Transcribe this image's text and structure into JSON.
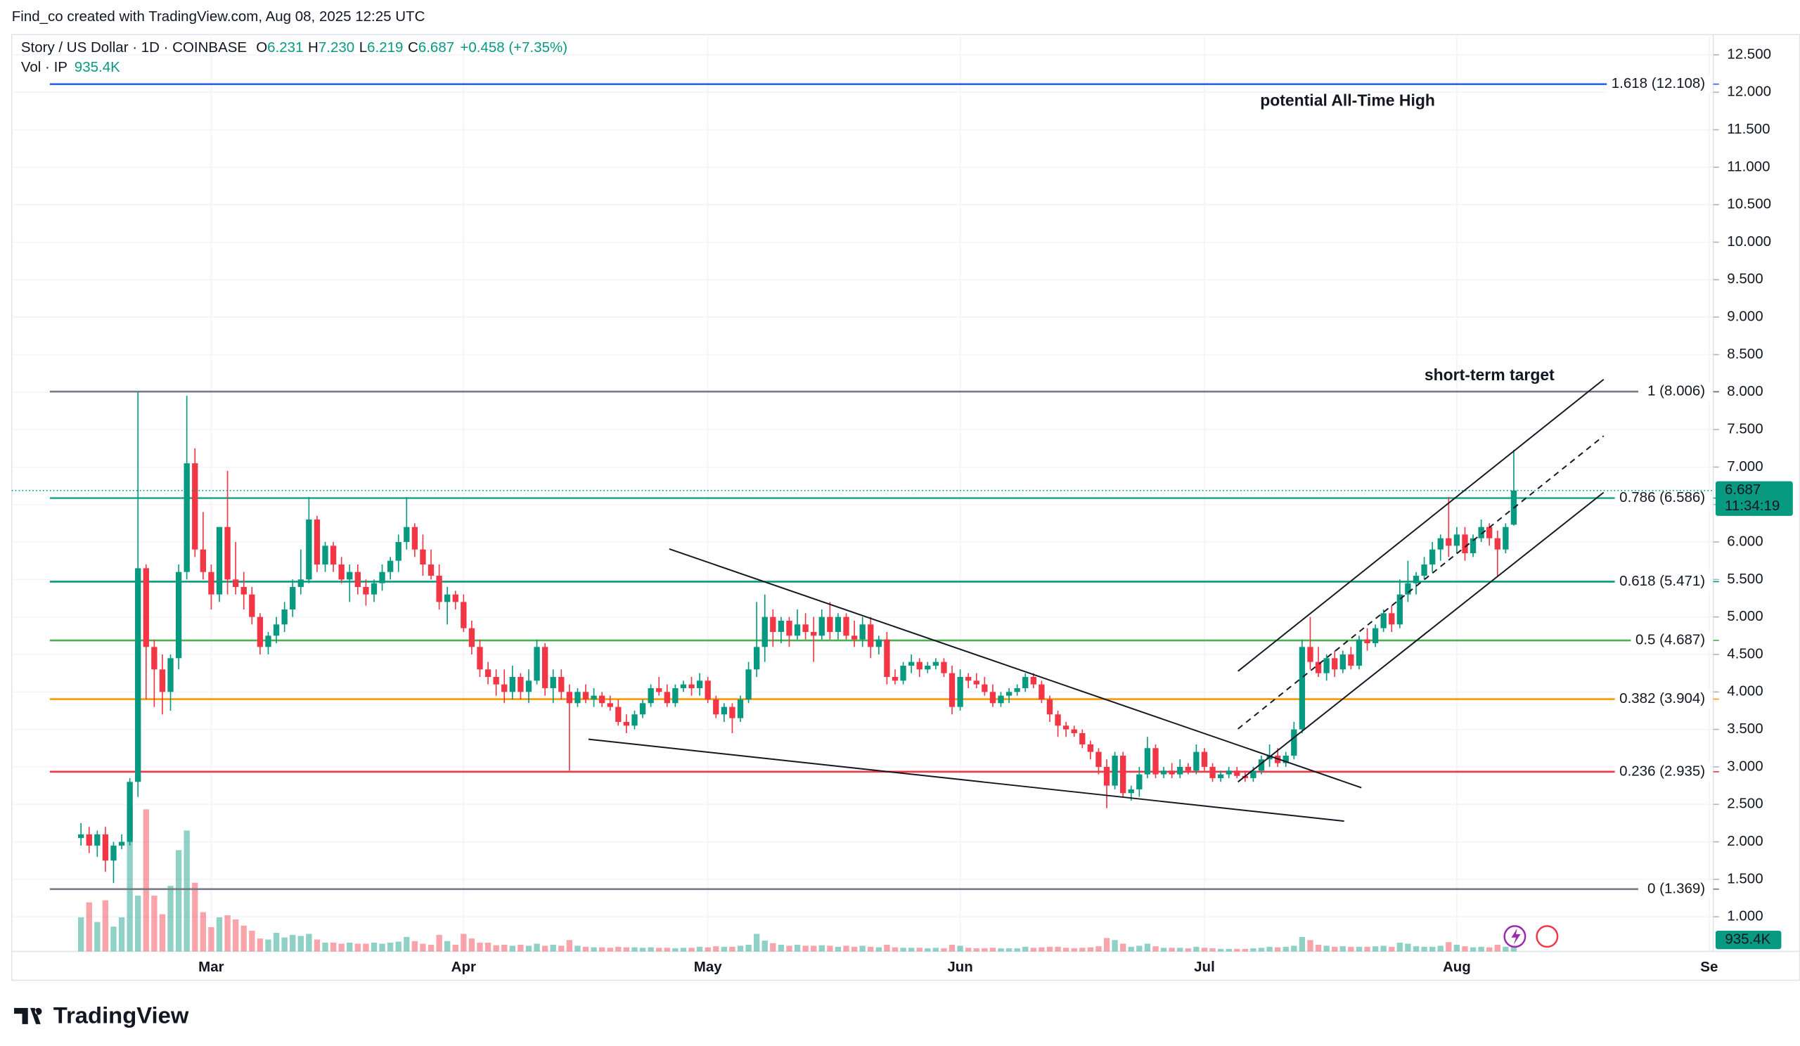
{
  "header": "Find_co created with TradingView.com, Aug 08, 2025 12:25 UTC",
  "footer": "TradingView",
  "chart_data": {
    "type": "candlestick",
    "legend": {
      "symbol": "Story / US Dollar · 1D · COINBASE",
      "fields": [
        {
          "key": "O",
          "value": "6.231"
        },
        {
          "key": "H",
          "value": "7.230"
        },
        {
          "key": "L",
          "value": "6.219"
        },
        {
          "key": "C",
          "value": "6.687"
        }
      ],
      "change": "+0.458 (+7.35%)",
      "volume_key": "Vol · IP",
      "volume": "935.4K"
    },
    "countdown": "11:34:19",
    "annotations": [
      "potential All-Time High",
      "short-term target"
    ],
    "up_color": "#089981",
    "down_color": "#f23645",
    "grid": true,
    "xlim": [
      -8.5,
      200.5
    ],
    "xticks": [
      {
        "value": 16,
        "label": "Mar"
      },
      {
        "value": 47,
        "label": "Apr"
      },
      {
        "value": 77,
        "label": "May"
      },
      {
        "value": 108,
        "label": "Jun"
      },
      {
        "value": 138,
        "label": "Jul"
      },
      {
        "value": 169,
        "label": "Aug"
      },
      {
        "value": 200,
        "label": "Se"
      }
    ],
    "ylim": [
      0.538,
      12.769
    ],
    "yticks": [
      {
        "value": 1,
        "label": "1.000"
      },
      {
        "value": 1.5,
        "label": "1.500"
      },
      {
        "value": 2,
        "label": "2.000"
      },
      {
        "value": 2.5,
        "label": "2.500"
      },
      {
        "value": 3,
        "label": "3.000"
      },
      {
        "value": 3.5,
        "label": "3.500"
      },
      {
        "value": 4,
        "label": "4.000"
      },
      {
        "value": 4.5,
        "label": "4.500"
      },
      {
        "value": 5,
        "label": "5.000"
      },
      {
        "value": 5.5,
        "label": "5.500"
      },
      {
        "value": 6,
        "label": "6.000"
      },
      {
        "value": 6.5,
        "label": "6.500"
      },
      {
        "value": 7,
        "label": "7.000"
      },
      {
        "value": 7.5,
        "label": "7.500"
      },
      {
        "value": 8,
        "label": "8.000"
      },
      {
        "value": 8.5,
        "label": "8.500"
      },
      {
        "value": 9,
        "label": "9.000"
      },
      {
        "value": 9.5,
        "label": "9.500"
      },
      {
        "value": 10,
        "label": "10.000"
      },
      {
        "value": 10.5,
        "label": "10.500"
      },
      {
        "value": 11,
        "label": "11.000"
      },
      {
        "value": 11.5,
        "label": "11.500"
      },
      {
        "value": 12,
        "label": "12.000"
      },
      {
        "value": 12.5,
        "label": "12.500"
      }
    ],
    "fib": [
      {
        "label": "1.618 (12.108)",
        "value": 12.108,
        "color": "#2962ff"
      },
      {
        "label": "1 (8.006)",
        "value": 8.006,
        "color": "#787b86"
      },
      {
        "label": "0.786 (6.586)",
        "value": 6.586,
        "color": "#22ab94"
      },
      {
        "label": "0.618 (5.471)",
        "value": 5.471,
        "color": "#089981"
      },
      {
        "label": "0.5 (4.687)",
        "value": 4.687,
        "color": "#4caf50"
      },
      {
        "label": "0.382 (3.904)",
        "value": 3.904,
        "color": "#ff9800"
      },
      {
        "label": "0.236 (2.935)",
        "value": 2.935,
        "color": "#f23645"
      },
      {
        "label": "0 (1.369)",
        "value": 1.369,
        "color": "#787b86"
      }
    ],
    "ohlc": [
      [
        2.05,
        2.25,
        1.95,
        2.1
      ],
      [
        2.1,
        2.2,
        1.85,
        1.95
      ],
      [
        1.95,
        2.15,
        1.8,
        2.1
      ],
      [
        2.1,
        2.2,
        1.6,
        1.75
      ],
      [
        1.75,
        2.0,
        1.45,
        1.95
      ],
      [
        1.95,
        2.1,
        1.9,
        2.0
      ],
      [
        2.0,
        2.85,
        1.95,
        2.8
      ],
      [
        2.8,
        8.0,
        2.6,
        5.65
      ],
      [
        5.65,
        5.7,
        3.9,
        4.6
      ],
      [
        4.6,
        4.7,
        3.8,
        4.3
      ],
      [
        4.3,
        4.5,
        3.7,
        4.0
      ],
      [
        4.0,
        4.5,
        3.75,
        4.45
      ],
      [
        4.45,
        5.7,
        4.3,
        5.6
      ],
      [
        5.6,
        7.95,
        5.5,
        7.05
      ],
      [
        7.05,
        7.25,
        5.8,
        5.9
      ],
      [
        5.9,
        6.4,
        5.5,
        5.6
      ],
      [
        5.6,
        5.7,
        5.1,
        5.3
      ],
      [
        5.3,
        6.2,
        5.2,
        6.2
      ],
      [
        6.2,
        6.95,
        5.3,
        5.5
      ],
      [
        5.5,
        6.0,
        5.3,
        5.4
      ],
      [
        5.4,
        5.6,
        5.1,
        5.3
      ],
      [
        5.3,
        5.4,
        4.9,
        5.0
      ],
      [
        5.0,
        5.05,
        4.5,
        4.6
      ],
      [
        4.6,
        4.8,
        4.5,
        4.75
      ],
      [
        4.75,
        5.0,
        4.65,
        4.9
      ],
      [
        4.9,
        5.2,
        4.8,
        5.1
      ],
      [
        5.1,
        5.5,
        5.0,
        5.4
      ],
      [
        5.4,
        5.9,
        5.3,
        5.5
      ],
      [
        5.5,
        6.6,
        5.45,
        6.3
      ],
      [
        6.3,
        6.35,
        5.6,
        5.7
      ],
      [
        5.7,
        6.0,
        5.6,
        5.95
      ],
      [
        5.95,
        6.0,
        5.6,
        5.7
      ],
      [
        5.7,
        5.8,
        5.45,
        5.5
      ],
      [
        5.5,
        5.7,
        5.2,
        5.6
      ],
      [
        5.6,
        5.7,
        5.3,
        5.4
      ],
      [
        5.4,
        5.5,
        5.15,
        5.3
      ],
      [
        5.3,
        5.5,
        5.2,
        5.45
      ],
      [
        5.45,
        5.7,
        5.35,
        5.6
      ],
      [
        5.6,
        5.8,
        5.5,
        5.75
      ],
      [
        5.75,
        6.1,
        5.6,
        6.0
      ],
      [
        6.0,
        6.6,
        5.9,
        6.2
      ],
      [
        6.2,
        6.25,
        5.8,
        5.9
      ],
      [
        5.9,
        6.1,
        5.55,
        5.7
      ],
      [
        5.7,
        5.9,
        5.5,
        5.55
      ],
      [
        5.55,
        5.7,
        5.1,
        5.2
      ],
      [
        5.2,
        5.4,
        4.9,
        5.3
      ],
      [
        5.3,
        5.35,
        5.1,
        5.2
      ],
      [
        5.2,
        5.3,
        4.8,
        4.85
      ],
      [
        4.85,
        4.95,
        4.5,
        4.6
      ],
      [
        4.6,
        4.7,
        4.2,
        4.3
      ],
      [
        4.3,
        4.4,
        4.1,
        4.2
      ],
      [
        4.2,
        4.3,
        3.95,
        4.1
      ],
      [
        4.1,
        4.3,
        3.85,
        4.0
      ],
      [
        4.0,
        4.35,
        3.9,
        4.2
      ],
      [
        4.2,
        4.25,
        3.9,
        4.0
      ],
      [
        4.0,
        4.3,
        3.85,
        4.15
      ],
      [
        4.15,
        4.7,
        4.1,
        4.6
      ],
      [
        4.6,
        4.65,
        3.95,
        4.05
      ],
      [
        4.05,
        4.3,
        3.85,
        4.2
      ],
      [
        4.2,
        4.3,
        3.9,
        4.0
      ],
      [
        4.0,
        4.1,
        2.95,
        3.85
      ],
      [
        3.85,
        4.05,
        3.8,
        4.0
      ],
      [
        4.0,
        4.1,
        3.85,
        3.9
      ],
      [
        3.9,
        4.05,
        3.8,
        3.95
      ],
      [
        3.95,
        4.0,
        3.8,
        3.85
      ],
      [
        3.85,
        3.95,
        3.75,
        3.8
      ],
      [
        3.8,
        3.9,
        3.55,
        3.6
      ],
      [
        3.6,
        3.7,
        3.45,
        3.55
      ],
      [
        3.55,
        3.75,
        3.5,
        3.7
      ],
      [
        3.7,
        3.9,
        3.65,
        3.85
      ],
      [
        3.85,
        4.1,
        3.8,
        4.05
      ],
      [
        4.05,
        4.2,
        3.95,
        4.0
      ],
      [
        4.0,
        4.1,
        3.8,
        3.85
      ],
      [
        3.85,
        4.1,
        3.8,
        4.05
      ],
      [
        4.05,
        4.15,
        4.0,
        4.1
      ],
      [
        4.1,
        4.2,
        3.95,
        4.05
      ],
      [
        4.05,
        4.25,
        3.95,
        4.15
      ],
      [
        4.15,
        4.2,
        3.85,
        3.9
      ],
      [
        3.9,
        3.95,
        3.65,
        3.7
      ],
      [
        3.7,
        3.85,
        3.6,
        3.8
      ],
      [
        3.8,
        3.85,
        3.45,
        3.65
      ],
      [
        3.65,
        3.95,
        3.6,
        3.9
      ],
      [
        3.9,
        4.4,
        3.85,
        4.3
      ],
      [
        4.3,
        5.2,
        4.2,
        4.6
      ],
      [
        4.6,
        5.3,
        4.4,
        5.0
      ],
      [
        5.0,
        5.1,
        4.6,
        4.8
      ],
      [
        4.8,
        5.0,
        4.65,
        4.95
      ],
      [
        4.95,
        5.0,
        4.6,
        4.75
      ],
      [
        4.75,
        5.1,
        4.7,
        4.9
      ],
      [
        4.9,
        5.05,
        4.7,
        4.8
      ],
      [
        4.8,
        5.0,
        4.4,
        4.75
      ],
      [
        4.75,
        5.1,
        4.7,
        5.0
      ],
      [
        5.0,
        5.2,
        4.7,
        4.8
      ],
      [
        4.8,
        5.05,
        4.7,
        5.0
      ],
      [
        5.0,
        5.05,
        4.7,
        4.75
      ],
      [
        4.75,
        4.95,
        4.6,
        4.7
      ],
      [
        4.7,
        5.0,
        4.6,
        4.9
      ],
      [
        4.9,
        5.0,
        4.45,
        4.6
      ],
      [
        4.6,
        4.75,
        4.5,
        4.7
      ],
      [
        4.7,
        4.8,
        4.1,
        4.2
      ],
      [
        4.2,
        4.3,
        4.1,
        4.15
      ],
      [
        4.15,
        4.4,
        4.1,
        4.35
      ],
      [
        4.35,
        4.5,
        4.25,
        4.4
      ],
      [
        4.4,
        4.45,
        4.2,
        4.3
      ],
      [
        4.3,
        4.4,
        4.25,
        4.35
      ],
      [
        4.35,
        4.45,
        4.3,
        4.4
      ],
      [
        4.4,
        4.45,
        4.2,
        4.25
      ],
      [
        4.25,
        4.35,
        3.7,
        3.8
      ],
      [
        3.8,
        4.3,
        3.75,
        4.2
      ],
      [
        4.2,
        4.25,
        4.05,
        4.15
      ],
      [
        4.15,
        4.25,
        4.05,
        4.1
      ],
      [
        4.1,
        4.2,
        3.95,
        4.0
      ],
      [
        4.0,
        4.1,
        3.8,
        3.85
      ],
      [
        3.85,
        4.0,
        3.8,
        3.95
      ],
      [
        3.95,
        4.05,
        3.85,
        4.0
      ],
      [
        4.0,
        4.1,
        3.95,
        4.05
      ],
      [
        4.05,
        4.25,
        4.0,
        4.2
      ],
      [
        4.2,
        4.25,
        4.05,
        4.1
      ],
      [
        4.1,
        4.15,
        3.85,
        3.9
      ],
      [
        3.9,
        3.95,
        3.6,
        3.7
      ],
      [
        3.7,
        3.75,
        3.4,
        3.55
      ],
      [
        3.55,
        3.6,
        3.4,
        3.5
      ],
      [
        3.5,
        3.55,
        3.4,
        3.45
      ],
      [
        3.45,
        3.5,
        3.25,
        3.3
      ],
      [
        3.3,
        3.35,
        3.1,
        3.2
      ],
      [
        3.2,
        3.25,
        2.9,
        3.0
      ],
      [
        3.0,
        3.1,
        2.45,
        2.75
      ],
      [
        2.75,
        3.2,
        2.7,
        3.15
      ],
      [
        3.15,
        3.2,
        2.6,
        2.65
      ],
      [
        2.65,
        2.75,
        2.55,
        2.7
      ],
      [
        2.7,
        3.0,
        2.6,
        2.9
      ],
      [
        2.9,
        3.4,
        2.85,
        3.25
      ],
      [
        3.25,
        3.3,
        2.85,
        2.9
      ],
      [
        2.9,
        3.0,
        2.85,
        2.95
      ],
      [
        2.95,
        3.05,
        2.85,
        2.9
      ],
      [
        2.9,
        3.1,
        2.85,
        3.0
      ],
      [
        3.0,
        3.05,
        2.9,
        2.95
      ],
      [
        2.95,
        3.3,
        2.9,
        3.2
      ],
      [
        3.2,
        3.25,
        2.95,
        3.0
      ],
      [
        3.0,
        3.05,
        2.8,
        2.85
      ],
      [
        2.85,
        2.95,
        2.8,
        2.9
      ],
      [
        2.9,
        3.0,
        2.85,
        2.95
      ],
      [
        2.95,
        3.0,
        2.85,
        2.88
      ],
      [
        2.88,
        2.95,
        2.8,
        2.85
      ],
      [
        2.85,
        3.0,
        2.8,
        2.95
      ],
      [
        2.95,
        3.15,
        2.9,
        3.1
      ],
      [
        3.1,
        3.3,
        3.0,
        3.15
      ],
      [
        3.15,
        3.25,
        3.0,
        3.05
      ],
      [
        3.05,
        3.2,
        3.0,
        3.15
      ],
      [
        3.15,
        3.6,
        3.1,
        3.5
      ],
      [
        3.5,
        4.7,
        3.45,
        4.6
      ],
      [
        4.6,
        5.0,
        4.3,
        4.4
      ],
      [
        4.4,
        4.6,
        4.2,
        4.25
      ],
      [
        4.25,
        4.5,
        4.15,
        4.45
      ],
      [
        4.45,
        4.55,
        4.2,
        4.3
      ],
      [
        4.3,
        4.55,
        4.25,
        4.5
      ],
      [
        4.5,
        4.6,
        4.3,
        4.35
      ],
      [
        4.35,
        4.75,
        4.3,
        4.7
      ],
      [
        4.7,
        4.85,
        4.55,
        4.65
      ],
      [
        4.65,
        4.9,
        4.6,
        4.85
      ],
      [
        4.85,
        5.1,
        4.8,
        5.05
      ],
      [
        5.05,
        5.15,
        4.8,
        4.9
      ],
      [
        4.9,
        5.5,
        4.85,
        5.3
      ],
      [
        5.3,
        5.75,
        5.2,
        5.45
      ],
      [
        5.45,
        5.6,
        5.3,
        5.55
      ],
      [
        5.55,
        5.8,
        5.5,
        5.7
      ],
      [
        5.7,
        6.0,
        5.6,
        5.9
      ],
      [
        5.9,
        6.1,
        5.75,
        6.05
      ],
      [
        6.05,
        6.6,
        5.8,
        5.95
      ],
      [
        5.95,
        6.2,
        5.85,
        6.1
      ],
      [
        6.1,
        6.2,
        5.75,
        5.85
      ],
      [
        5.85,
        6.1,
        5.8,
        6.05
      ],
      [
        6.05,
        6.3,
        6.0,
        6.2
      ],
      [
        6.2,
        6.25,
        5.95,
        6.05
      ],
      [
        6.05,
        6.15,
        5.55,
        5.9
      ],
      [
        5.9,
        6.25,
        5.85,
        6.2
      ],
      [
        6.231,
        7.23,
        6.219,
        6.687
      ]
    ],
    "volume": [
      6600,
      9500,
      5700,
      9900,
      4800,
      6600,
      27900,
      10800,
      27500,
      10800,
      7200,
      12700,
      19600,
      23400,
      13300,
      7600,
      4700,
      6600,
      7000,
      6200,
      5000,
      4000,
      2500,
      2300,
      3600,
      2700,
      3200,
      3000,
      3400,
      2300,
      1700,
      1700,
      1500,
      1700,
      1500,
      1500,
      1700,
      1500,
      1700,
      1900,
      2800,
      2000,
      1500,
      1300,
      3200,
      2000,
      1300,
      3400,
      2500,
      1700,
      1700,
      1200,
      1300,
      1100,
      1300,
      1100,
      1500,
      1100,
      1300,
      1100,
      2200,
      1100,
      900,
      800,
      800,
      700,
      900,
      800,
      800,
      700,
      800,
      700,
      700,
      600,
      700,
      700,
      900,
      800,
      1000,
      900,
      900,
      1100,
      1300,
      3400,
      2100,
      1600,
      1300,
      1100,
      1300,
      1100,
      1100,
      1200,
      1100,
      900,
      1100,
      900,
      1100,
      900,
      800,
      1300,
      800,
      700,
      700,
      700,
      600,
      700,
      600,
      1300,
      1100,
      700,
      600,
      600,
      700,
      600,
      600,
      600,
      900,
      700,
      800,
      900,
      900,
      700,
      600,
      700,
      800,
      1000,
      2600,
      2200,
      1500,
      900,
      1100,
      1500,
      1000,
      700,
      700,
      700,
      600,
      900,
      700,
      600,
      500,
      500,
      500,
      500,
      600,
      700,
      900,
      800,
      900,
      1100,
      2800,
      2200,
      1300,
      1100,
      900,
      1000,
      900,
      900,
      900,
      1000,
      1100,
      900,
      1700,
      1500,
      1000,
      900,
      900,
      1100,
      1800,
      1300,
      1000,
      800,
      900,
      800,
      1300,
      900,
      935.4
    ]
  }
}
